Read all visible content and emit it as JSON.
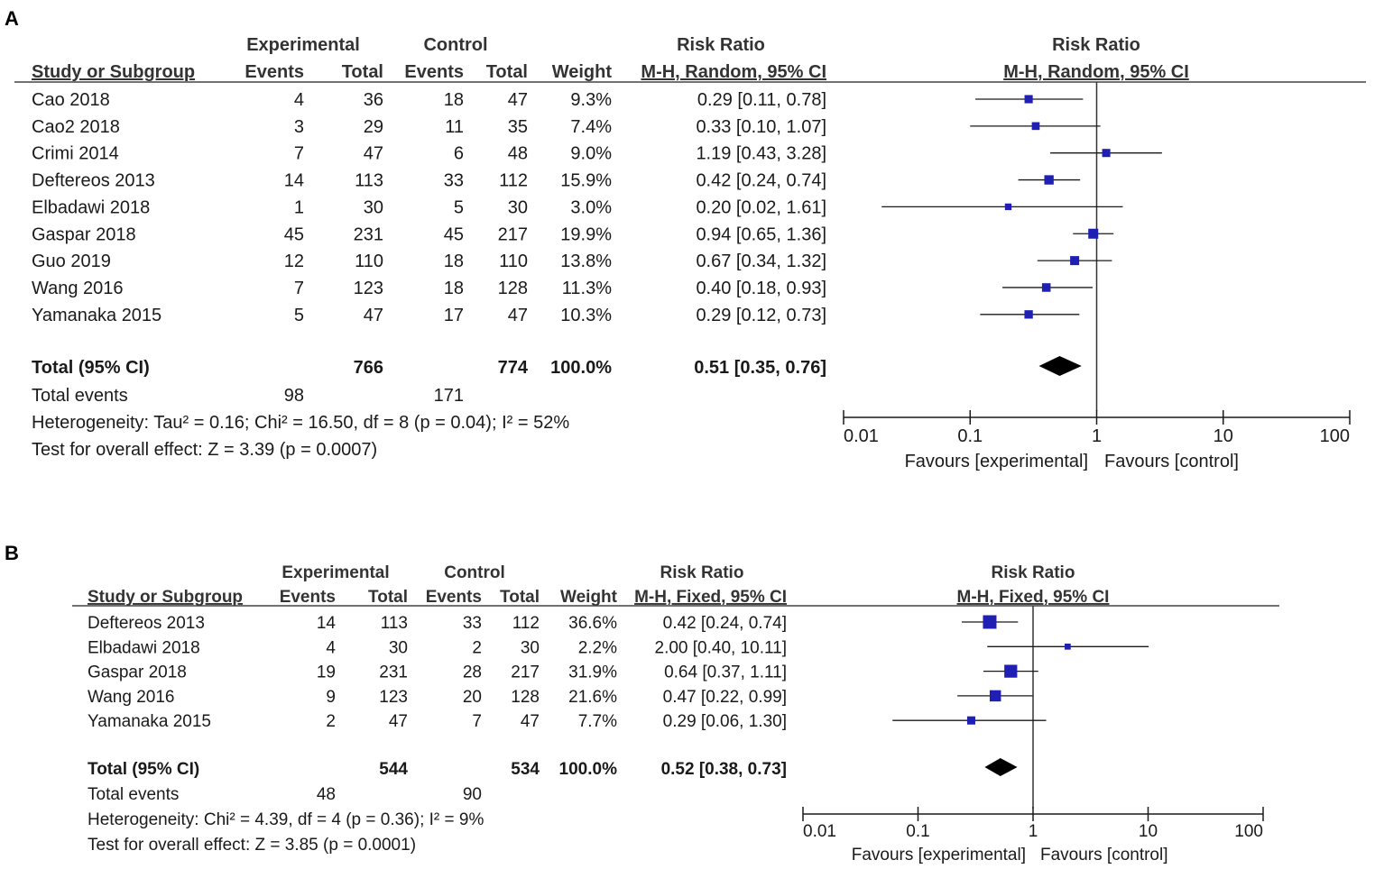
{
  "chart_data": [
    {
      "type": "forest",
      "panel_label": "A",
      "headers": {
        "study": "Study or Subgroup",
        "experimental": "Experimental",
        "control": "Control",
        "events": "Events",
        "total": "Total",
        "weight": "Weight",
        "risk_ratio": "Risk Ratio",
        "method": "M-H, Random, 95% CI"
      },
      "studies": [
        {
          "name": "Cao 2018",
          "exp_events": "4",
          "exp_total": "36",
          "ctrl_events": "18",
          "ctrl_total": "47",
          "weight_label": "9.3%",
          "weight": 9.3,
          "ci_label": "0.29 [0.11, 0.78]",
          "rr": 0.29,
          "lo": 0.11,
          "hi": 0.78
        },
        {
          "name": "Cao2 2018",
          "exp_events": "3",
          "exp_total": "29",
          "ctrl_events": "11",
          "ctrl_total": "35",
          "weight_label": "7.4%",
          "weight": 7.4,
          "ci_label": "0.33 [0.10, 1.07]",
          "rr": 0.33,
          "lo": 0.1,
          "hi": 1.07
        },
        {
          "name": "Crimi 2014",
          "exp_events": "7",
          "exp_total": "47",
          "ctrl_events": "6",
          "ctrl_total": "48",
          "weight_label": "9.0%",
          "weight": 9.0,
          "ci_label": "1.19 [0.43, 3.28]",
          "rr": 1.19,
          "lo": 0.43,
          "hi": 3.28
        },
        {
          "name": "Deftereos  2013",
          "exp_events": "14",
          "exp_total": "113",
          "ctrl_events": "33",
          "ctrl_total": "112",
          "weight_label": "15.9%",
          "weight": 15.9,
          "ci_label": "0.42 [0.24, 0.74]",
          "rr": 0.42,
          "lo": 0.24,
          "hi": 0.74
        },
        {
          "name": "Elbadawi 2018",
          "exp_events": "1",
          "exp_total": "30",
          "ctrl_events": "5",
          "ctrl_total": "30",
          "weight_label": "3.0%",
          "weight": 3.0,
          "ci_label": "0.20 [0.02, 1.61]",
          "rr": 0.2,
          "lo": 0.02,
          "hi": 1.61
        },
        {
          "name": "Gaspar 2018",
          "exp_events": "45",
          "exp_total": "231",
          "ctrl_events": "45",
          "ctrl_total": "217",
          "weight_label": "19.9%",
          "weight": 19.9,
          "ci_label": "0.94 [0.65, 1.36]",
          "rr": 0.94,
          "lo": 0.65,
          "hi": 1.36
        },
        {
          "name": "Guo 2019",
          "exp_events": "12",
          "exp_total": "110",
          "ctrl_events": "18",
          "ctrl_total": "110",
          "weight_label": "13.8%",
          "weight": 13.8,
          "ci_label": "0.67 [0.34, 1.32]",
          "rr": 0.67,
          "lo": 0.34,
          "hi": 1.32
        },
        {
          "name": "Wang 2016",
          "exp_events": "7",
          "exp_total": "123",
          "ctrl_events": "18",
          "ctrl_total": "128",
          "weight_label": "11.3%",
          "weight": 11.3,
          "ci_label": "0.40 [0.18, 0.93]",
          "rr": 0.4,
          "lo": 0.18,
          "hi": 0.93
        },
        {
          "name": "Yamanaka 2015",
          "exp_events": "5",
          "exp_total": "47",
          "ctrl_events": "17",
          "ctrl_total": "47",
          "weight_label": "10.3%",
          "weight": 10.3,
          "ci_label": "0.29 [0.12, 0.73]",
          "rr": 0.29,
          "lo": 0.12,
          "hi": 0.73
        }
      ],
      "total": {
        "label": "Total (95% CI)",
        "exp_total": "766",
        "ctrl_total": "774",
        "weight_label": "100.0%",
        "ci_label": "0.51 [0.35, 0.76]",
        "rr": 0.51,
        "lo": 0.35,
        "hi": 0.76
      },
      "total_events": {
        "label": "Total events",
        "exp": "98",
        "ctrl": "171"
      },
      "heterogeneity": "Heterogeneity: Tau² = 0.16; Chi² = 16.50, df = 8 (p = 0.04); I² = 52%",
      "overall_effect": "Test for overall effect: Z = 3.39 (p = 0.0007)",
      "x_scale": "log",
      "x_range": [
        0.01,
        100
      ],
      "x_ticks": [
        {
          "v": 0.01,
          "label": "0.01"
        },
        {
          "v": 0.1,
          "label": "0.1"
        },
        {
          "v": 1,
          "label": "1"
        },
        {
          "v": 10,
          "label": "10"
        },
        {
          "v": 100,
          "label": "100"
        }
      ],
      "favours_left": "Favours [experimental]",
      "favours_right": "Favours [control]",
      "marker_color": "#1f1fb4"
    },
    {
      "type": "forest",
      "panel_label": "B",
      "headers": {
        "study": "Study or Subgroup",
        "experimental": "Experimental",
        "control": "Control",
        "events": "Events",
        "total": "Total",
        "weight": "Weight",
        "risk_ratio": "Risk Ratio",
        "method": "M-H, Fixed, 95% CI"
      },
      "studies": [
        {
          "name": "Deftereos  2013",
          "exp_events": "14",
          "exp_total": "113",
          "ctrl_events": "33",
          "ctrl_total": "112",
          "weight_label": "36.6%",
          "weight": 36.6,
          "ci_label": "0.42 [0.24, 0.74]",
          "rr": 0.42,
          "lo": 0.24,
          "hi": 0.74
        },
        {
          "name": "Elbadawi 2018",
          "exp_events": "4",
          "exp_total": "30",
          "ctrl_events": "2",
          "ctrl_total": "30",
          "weight_label": "2.2%",
          "weight": 2.2,
          "ci_label": "2.00 [0.40, 10.11]",
          "rr": 2.0,
          "lo": 0.4,
          "hi": 10.11
        },
        {
          "name": "Gaspar 2018",
          "exp_events": "19",
          "exp_total": "231",
          "ctrl_events": "28",
          "ctrl_total": "217",
          "weight_label": "31.9%",
          "weight": 31.9,
          "ci_label": "0.64 [0.37, 1.11]",
          "rr": 0.64,
          "lo": 0.37,
          "hi": 1.11
        },
        {
          "name": "Wang 2016",
          "exp_events": "9",
          "exp_total": "123",
          "ctrl_events": "20",
          "ctrl_total": "128",
          "weight_label": "21.6%",
          "weight": 21.6,
          "ci_label": "0.47 [0.22, 0.99]",
          "rr": 0.47,
          "lo": 0.22,
          "hi": 0.99
        },
        {
          "name": "Yamanaka 2015",
          "exp_events": "2",
          "exp_total": "47",
          "ctrl_events": "7",
          "ctrl_total": "47",
          "weight_label": "7.7%",
          "weight": 7.7,
          "ci_label": "0.29 [0.06, 1.30]",
          "rr": 0.29,
          "lo": 0.06,
          "hi": 1.3
        }
      ],
      "total": {
        "label": "Total (95% CI)",
        "exp_total": "544",
        "ctrl_total": "534",
        "weight_label": "100.0%",
        "ci_label": "0.52 [0.38, 0.73]",
        "rr": 0.52,
        "lo": 0.38,
        "hi": 0.73
      },
      "total_events": {
        "label": "Total events",
        "exp": "48",
        "ctrl": "90"
      },
      "heterogeneity": "Heterogeneity: Chi² = 4.39, df = 4 (p = 0.36); I² = 9%",
      "overall_effect": "Test for overall effect: Z = 3.85 (p = 0.0001)",
      "x_scale": "log",
      "x_range": [
        0.01,
        100
      ],
      "x_ticks": [
        {
          "v": 0.01,
          "label": "0.01"
        },
        {
          "v": 0.1,
          "label": "0.1"
        },
        {
          "v": 1,
          "label": "1"
        },
        {
          "v": 10,
          "label": "10"
        },
        {
          "v": 100,
          "label": "100"
        }
      ],
      "favours_left": "Favours [experimental]",
      "favours_right": "Favours [control]",
      "marker_color": "#1f1fb4"
    }
  ]
}
